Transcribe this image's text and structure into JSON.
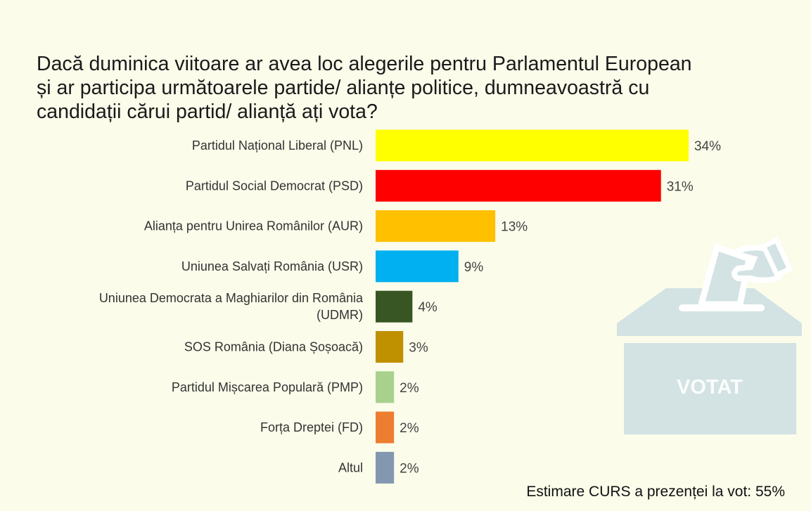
{
  "chart_data": {
    "type": "bar",
    "orientation": "horizontal",
    "title": "Dacă duminica viitoare ar avea loc alegerile pentru Parlamentul European\nși ar participa  următoarele partide/ alianțe politice, dumneavoastră cu\ncandidații cărui partid/ alianță ați vota?",
    "categories": [
      [
        "Partidul Național Liberal (PNL)"
      ],
      [
        "Partidul Social Democrat (PSD)"
      ],
      [
        "Alianța pentru Unirea Românilor (AUR)"
      ],
      [
        "Uniunea Salvați România (USR)"
      ],
      [
        "Uniunea Democrata a Maghiarilor din România",
        "(UDMR)"
      ],
      [
        "SOS România (Diana Șoșoacă)"
      ],
      [
        "Partidul Mișcarea Populară (PMP)"
      ],
      [
        "Forța Dreptei (FD)"
      ],
      [
        "Altul"
      ]
    ],
    "values": [
      34,
      31,
      13,
      9,
      4,
      3,
      2,
      2,
      2
    ],
    "value_labels": [
      "34%",
      "31%",
      "13%",
      "9%",
      "4%",
      "3%",
      "2%",
      "2%",
      "2%"
    ],
    "colors": [
      "#ffff00",
      "#ff0000",
      "#ffc000",
      "#00b0f0",
      "#375623",
      "#bf9000",
      "#a9d18e",
      "#ed7d31",
      "#8497b0"
    ],
    "xlim": [
      0,
      34
    ],
    "grid": false,
    "legend": "none",
    "xlabel": "",
    "ylabel": ""
  },
  "note": "Estimare CURS a prezenței la vot: 55%",
  "illustration": {
    "label": "VOTAT",
    "icon": "ballot-box-icon"
  }
}
